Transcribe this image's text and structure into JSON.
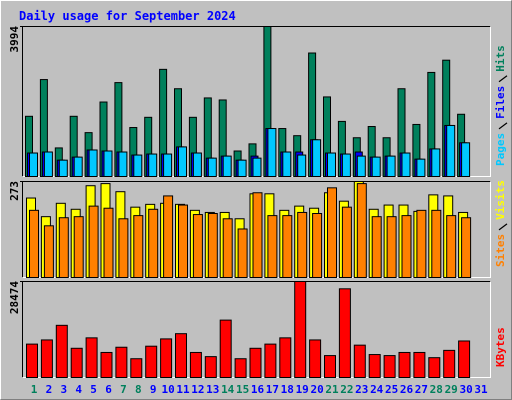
{
  "chart_data": [
    {
      "type": "bar",
      "title": "Daily usage for September 2024",
      "ylim": [
        0,
        3994
      ],
      "yticks": [
        3994
      ],
      "series": [
        {
          "name": "Hits",
          "color": "#00805c",
          "values": [
            1603,
            2581,
            761,
            1603,
            1168,
            1983,
            2500,
            1304,
            1576,
            2853,
            2337,
            1576,
            2092,
            2038,
            679,
            869,
            3994,
            1277,
            1087,
            3288,
            2119,
            1467,
            1032,
            1331,
            1032,
            2337,
            1386,
            2771,
            3097,
            1657,
            null
          ]
        },
        {
          "name": "Files",
          "color": "#0000ff",
          "values": [
            625,
            652,
            435,
            516,
            706,
            679,
            652,
            571,
            598,
            598,
            788,
            625,
            489,
            543,
            435,
            543,
            1277,
            652,
            652,
            978,
            625,
            598,
            652,
            516,
            543,
            625,
            462,
            734,
            1359,
            897,
            null
          ]
        },
        {
          "name": "Pages",
          "color": "#00c8ff",
          "values": [
            625,
            652,
            435,
            516,
            706,
            679,
            652,
            571,
            598,
            598,
            788,
            625,
            489,
            543,
            435,
            489,
            1277,
            652,
            571,
            978,
            625,
            598,
            543,
            516,
            543,
            625,
            462,
            734,
            1359,
            897,
            null
          ]
        }
      ]
    },
    {
      "type": "bar",
      "ylim": [
        0,
        273
      ],
      "yticks": [
        273
      ],
      "series": [
        {
          "name": "Visits",
          "color": "#ffff00",
          "values": [
            226,
            173,
            211,
            194,
            261,
            267,
            244,
            200,
            208,
            211,
            208,
            191,
            185,
            185,
            167,
            238,
            238,
            191,
            203,
            197,
            241,
            217,
            273,
            194,
            206,
            206,
            188,
            235,
            232,
            185,
            null
          ]
        },
        {
          "name": "Sites",
          "color": "#ff8000",
          "values": [
            191,
            147,
            170,
            173,
            203,
            197,
            167,
            176,
            194,
            232,
            206,
            179,
            182,
            167,
            138,
            241,
            176,
            176,
            185,
            182,
            255,
            200,
            267,
            173,
            173,
            176,
            191,
            191,
            176,
            170,
            null
          ]
        }
      ]
    },
    {
      "type": "bar",
      "ylim": [
        0,
        28474
      ],
      "yticks": [
        28474
      ],
      "categories": [
        "1",
        "2",
        "3",
        "4",
        "5",
        "6",
        "7",
        "8",
        "9",
        "10",
        "11",
        "12",
        "13",
        "14",
        "15",
        "16",
        "17",
        "18",
        "19",
        "20",
        "21",
        "22",
        "23",
        "24",
        "25",
        "26",
        "27",
        "28",
        "29",
        "30",
        "31"
      ],
      "category_colors": [
        "#00805c",
        "#0000ff",
        "#0000ff",
        "#0000ff",
        "#0000ff",
        "#0000ff",
        "#00805c",
        "#00805c",
        "#0000ff",
        "#0000ff",
        "#0000ff",
        "#0000ff",
        "#0000ff",
        "#00805c",
        "#00805c",
        "#0000ff",
        "#0000ff",
        "#0000ff",
        "#0000ff",
        "#0000ff",
        "#00805c",
        "#00805c",
        "#0000ff",
        "#0000ff",
        "#0000ff",
        "#0000ff",
        "#0000ff",
        "#00805c",
        "#00805c",
        "#0000ff",
        "#0000ff"
      ],
      "series": [
        {
          "name": "KBytes",
          "color": "#ff0000",
          "values": [
            9904,
            11142,
            15475,
            8666,
            11761,
            7428,
            8976,
            5571,
            9285,
            11452,
            12999,
            7428,
            6190,
            17022,
            5571,
            8666,
            9904,
            11761,
            28474,
            11142,
            6500,
            26308,
            9594,
            6809,
            6500,
            7428,
            7428,
            5881,
            8047,
            10833,
            null
          ]
        }
      ]
    }
  ]
}
